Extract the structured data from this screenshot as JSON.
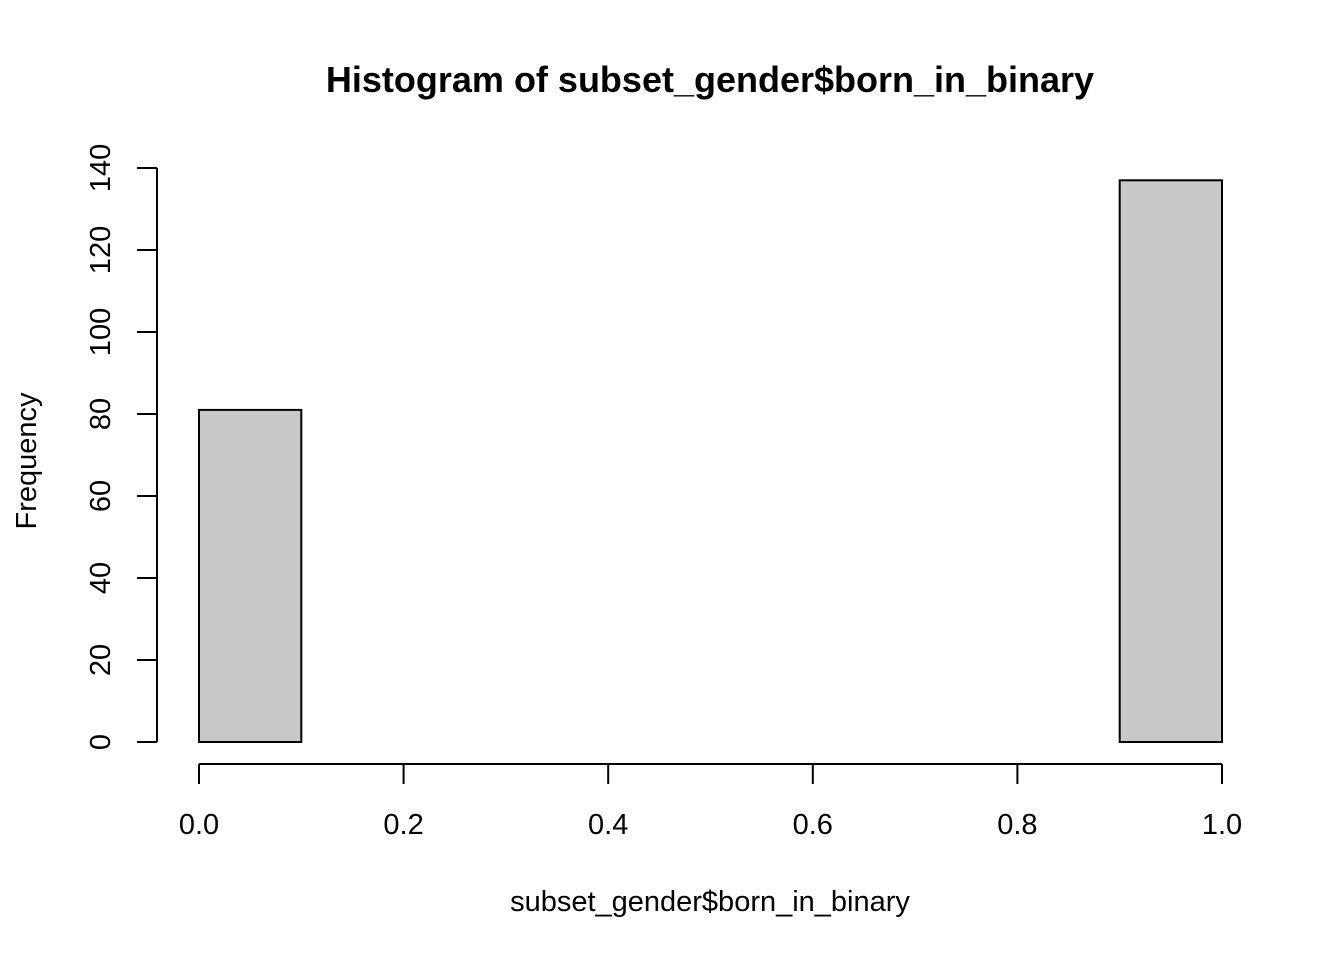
{
  "chart_data": {
    "type": "bar",
    "title": "Histogram of subset_gender$born_in_binary",
    "xlabel": "subset_gender$born_in_binary",
    "ylabel": "Frequency",
    "xlim": [
      0,
      1
    ],
    "ylim": [
      0,
      140
    ],
    "x_ticks": [
      "0.0",
      "0.2",
      "0.4",
      "0.6",
      "0.8",
      "1.0"
    ],
    "y_ticks": [
      "0",
      "20",
      "40",
      "60",
      "80",
      "100",
      "120",
      "140"
    ],
    "bins": [
      {
        "start": 0.0,
        "end": 0.1,
        "value": 81
      },
      {
        "start": 0.1,
        "end": 0.2,
        "value": 0
      },
      {
        "start": 0.2,
        "end": 0.3,
        "value": 0
      },
      {
        "start": 0.3,
        "end": 0.4,
        "value": 0
      },
      {
        "start": 0.4,
        "end": 0.5,
        "value": 0
      },
      {
        "start": 0.5,
        "end": 0.6,
        "value": 0
      },
      {
        "start": 0.6,
        "end": 0.7,
        "value": 0
      },
      {
        "start": 0.7,
        "end": 0.8,
        "value": 0
      },
      {
        "start": 0.8,
        "end": 0.9,
        "value": 0
      },
      {
        "start": 0.9,
        "end": 1.0,
        "value": 137
      }
    ],
    "grid": false,
    "colors": {
      "bar_fill": "#c8c8c8",
      "bar_stroke": "#000000"
    }
  }
}
